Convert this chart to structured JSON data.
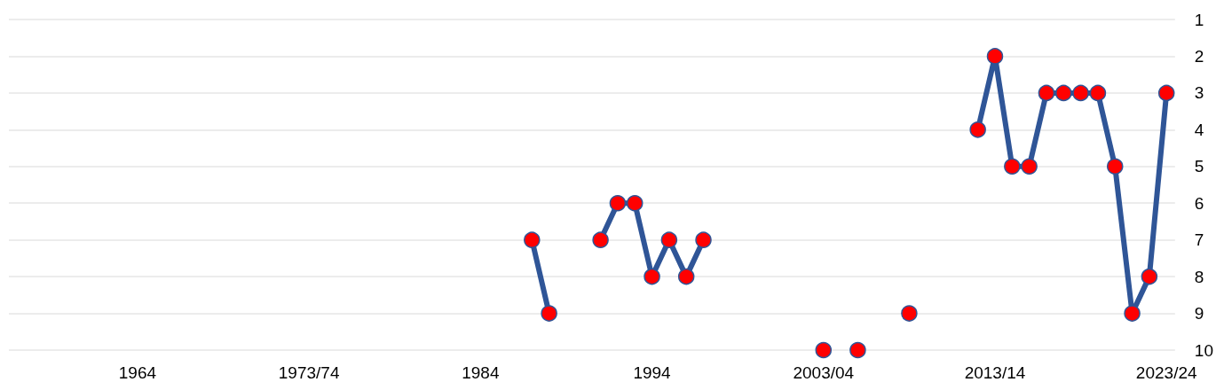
{
  "chart_data": {
    "type": "line",
    "categories": [
      null,
      null,
      null,
      null,
      null,
      null,
      null,
      "1964",
      null,
      null,
      null,
      null,
      null,
      null,
      null,
      null,
      null,
      "1973/74",
      null,
      null,
      null,
      null,
      null,
      null,
      null,
      null,
      null,
      "1984",
      null,
      null,
      null,
      null,
      null,
      null,
      null,
      null,
      null,
      "1994",
      null,
      null,
      null,
      null,
      null,
      null,
      null,
      null,
      null,
      "2003/04",
      null,
      null,
      null,
      null,
      null,
      null,
      null,
      null,
      null,
      "2013/14",
      null,
      null,
      null,
      null,
      null,
      null,
      null,
      null,
      null,
      "2023/24"
    ],
    "series": [
      {
        "color": "#2f5597",
        "colors": [
          null,
          null,
          null,
          null,
          null,
          null,
          null,
          null,
          null,
          null,
          null,
          null,
          null,
          null,
          null,
          null,
          null,
          null,
          null,
          null,
          null,
          null,
          null,
          null,
          null,
          null,
          null,
          null,
          null,
          null,
          "#ff0000",
          "#ff0000",
          null,
          null,
          "#ff0000",
          "#ff0000",
          "#ff0000",
          "#ff0000",
          "#ff0000",
          "#ff0000",
          "#ff0000",
          null,
          null,
          null,
          null,
          null,
          null,
          "#ff0000",
          null,
          "#ff0000",
          null,
          null,
          "#ff0000",
          null,
          null,
          null,
          "#ff0000",
          "#ff0000",
          "#ff0000",
          "#ff0000",
          "#ff0000",
          "#ff0000",
          "#ff0000",
          "#ff0000",
          "#ff0000",
          "#ff0000",
          "#ff0000",
          "#ff0000"
        ],
        "values": [
          null,
          null,
          null,
          null,
          null,
          null,
          null,
          null,
          null,
          null,
          null,
          null,
          null,
          null,
          null,
          null,
          null,
          null,
          null,
          null,
          null,
          null,
          null,
          null,
          null,
          null,
          null,
          null,
          null,
          null,
          7,
          9,
          null,
          null,
          7,
          6,
          6,
          8,
          7,
          8,
          7,
          null,
          null,
          null,
          null,
          null,
          null,
          10,
          null,
          10,
          null,
          null,
          9,
          null,
          null,
          null,
          4,
          2,
          5,
          5,
          3,
          3,
          3,
          3,
          5,
          9,
          8,
          3
        ]
      }
    ],
    "ylim": [
      10,
      1
    ],
    "yticks": [
      1,
      2,
      3,
      4,
      5,
      6,
      7,
      8,
      9,
      10
    ],
    "grid": "y",
    "marker": "circle",
    "line_style": "solid"
  }
}
